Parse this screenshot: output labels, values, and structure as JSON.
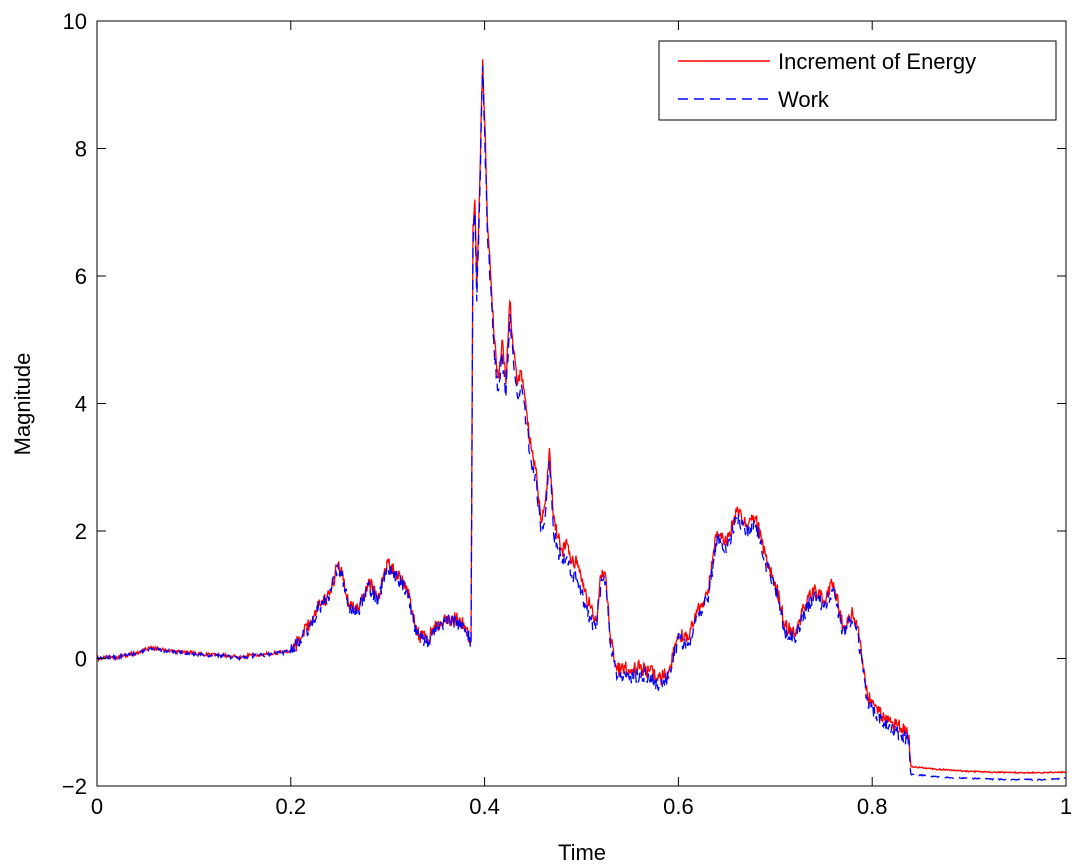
{
  "chart_data": {
    "type": "line",
    "title": "",
    "xlabel": "Time",
    "ylabel": "Magnitude",
    "xlim": [
      0,
      1
    ],
    "ylim": [
      -2,
      10
    ],
    "xticks": [
      0,
      0.2,
      0.4,
      0.6,
      0.8,
      1
    ],
    "xtick_labels": [
      "0",
      "0.2",
      "0.4",
      "0.6",
      "0.8",
      "1"
    ],
    "yticks": [
      -2,
      0,
      2,
      4,
      6,
      8,
      10
    ],
    "ytick_labels": [
      "−2",
      "0",
      "2",
      "4",
      "6",
      "8",
      "10"
    ],
    "grid": false,
    "legend_position": "top-right",
    "series": [
      {
        "name": "Increment of Energy",
        "color": "#ff0000",
        "style": "solid",
        "x": [
          0,
          0.02,
          0.04,
          0.055,
          0.07,
          0.09,
          0.11,
          0.13,
          0.145,
          0.16,
          0.18,
          0.2,
          0.21,
          0.22,
          0.23,
          0.24,
          0.248,
          0.255,
          0.26,
          0.27,
          0.28,
          0.29,
          0.3,
          0.31,
          0.32,
          0.33,
          0.34,
          0.35,
          0.36,
          0.37,
          0.38,
          0.386,
          0.388,
          0.39,
          0.392,
          0.395,
          0.398,
          0.4,
          0.403,
          0.406,
          0.41,
          0.414,
          0.418,
          0.422,
          0.426,
          0.43,
          0.434,
          0.438,
          0.443,
          0.448,
          0.453,
          0.458,
          0.463,
          0.467,
          0.471,
          0.476,
          0.48,
          0.485,
          0.49,
          0.495,
          0.5,
          0.505,
          0.51,
          0.515,
          0.52,
          0.525,
          0.53,
          0.535,
          0.54,
          0.545,
          0.55,
          0.56,
          0.57,
          0.58,
          0.59,
          0.6,
          0.61,
          0.62,
          0.63,
          0.64,
          0.65,
          0.66,
          0.67,
          0.68,
          0.69,
          0.7,
          0.71,
          0.72,
          0.73,
          0.74,
          0.75,
          0.76,
          0.77,
          0.78,
          0.785,
          0.79,
          0.795,
          0.8,
          0.81,
          0.82,
          0.83,
          0.838,
          0.84,
          0.85,
          0.86,
          0.88,
          0.9,
          0.92,
          0.94,
          0.96,
          0.98,
          1.0
        ],
        "y": [
          0.0,
          0.02,
          0.08,
          0.17,
          0.13,
          0.1,
          0.06,
          0.05,
          0.02,
          0.05,
          0.08,
          0.12,
          0.3,
          0.55,
          0.85,
          1.0,
          1.45,
          1.25,
          0.85,
          0.8,
          1.2,
          0.95,
          1.5,
          1.3,
          1.1,
          0.4,
          0.28,
          0.5,
          0.65,
          0.62,
          0.5,
          0.3,
          6.8,
          7.2,
          5.8,
          7.5,
          9.4,
          8.5,
          6.8,
          6.1,
          5.0,
          4.4,
          5.0,
          4.3,
          5.6,
          4.8,
          4.3,
          4.5,
          3.9,
          3.3,
          3.0,
          2.2,
          2.5,
          3.3,
          2.2,
          1.9,
          1.7,
          1.8,
          1.5,
          1.5,
          1.2,
          1.0,
          0.8,
          0.6,
          1.3,
          1.3,
          0.3,
          -0.1,
          -0.2,
          -0.15,
          -0.2,
          -0.15,
          -0.2,
          -0.3,
          -0.2,
          0.4,
          0.3,
          0.8,
          1.0,
          2.0,
          1.8,
          2.3,
          2.1,
          2.2,
          1.6,
          1.2,
          0.5,
          0.4,
          0.8,
          1.1,
          0.9,
          1.2,
          0.5,
          0.7,
          0.5,
          0.0,
          -0.6,
          -0.7,
          -0.9,
          -1.0,
          -1.1,
          -1.2,
          -1.7,
          -1.71,
          -1.73,
          -1.75,
          -1.77,
          -1.78,
          -1.79,
          -1.79,
          -1.79,
          -1.78
        ]
      },
      {
        "name": "Work",
        "color": "#0000ff",
        "style": "dashed",
        "x": [
          0,
          0.02,
          0.04,
          0.055,
          0.07,
          0.09,
          0.11,
          0.13,
          0.145,
          0.16,
          0.18,
          0.2,
          0.21,
          0.22,
          0.23,
          0.24,
          0.248,
          0.255,
          0.26,
          0.27,
          0.28,
          0.29,
          0.3,
          0.31,
          0.32,
          0.33,
          0.34,
          0.35,
          0.36,
          0.37,
          0.38,
          0.386,
          0.388,
          0.39,
          0.392,
          0.395,
          0.398,
          0.4,
          0.403,
          0.406,
          0.41,
          0.414,
          0.418,
          0.422,
          0.426,
          0.43,
          0.434,
          0.438,
          0.443,
          0.448,
          0.453,
          0.458,
          0.463,
          0.467,
          0.471,
          0.476,
          0.48,
          0.485,
          0.49,
          0.495,
          0.5,
          0.505,
          0.51,
          0.515,
          0.52,
          0.525,
          0.53,
          0.535,
          0.54,
          0.545,
          0.55,
          0.56,
          0.57,
          0.58,
          0.59,
          0.6,
          0.61,
          0.62,
          0.63,
          0.64,
          0.65,
          0.66,
          0.67,
          0.68,
          0.69,
          0.7,
          0.71,
          0.72,
          0.73,
          0.74,
          0.75,
          0.76,
          0.77,
          0.78,
          0.785,
          0.79,
          0.795,
          0.8,
          0.81,
          0.82,
          0.83,
          0.838,
          0.84,
          0.85,
          0.86,
          0.88,
          0.9,
          0.92,
          0.94,
          0.96,
          0.98,
          1.0
        ],
        "y": [
          0.0,
          0.02,
          0.07,
          0.16,
          0.12,
          0.09,
          0.05,
          0.04,
          0.01,
          0.04,
          0.07,
          0.11,
          0.28,
          0.52,
          0.82,
          0.97,
          1.4,
          1.2,
          0.82,
          0.76,
          1.15,
          0.9,
          1.45,
          1.25,
          1.05,
          0.36,
          0.25,
          0.46,
          0.6,
          0.58,
          0.46,
          0.25,
          6.5,
          7.0,
          5.6,
          7.3,
          9.3,
          8.3,
          6.6,
          5.9,
          4.8,
          4.2,
          4.8,
          4.1,
          5.4,
          4.6,
          4.1,
          4.3,
          3.7,
          3.1,
          2.8,
          2.0,
          2.3,
          3.1,
          2.0,
          1.7,
          1.5,
          1.6,
          1.3,
          1.3,
          1.0,
          0.8,
          0.6,
          0.45,
          1.2,
          1.2,
          0.2,
          -0.2,
          -0.3,
          -0.25,
          -0.3,
          -0.25,
          -0.3,
          -0.45,
          -0.3,
          0.3,
          0.2,
          0.7,
          0.9,
          1.9,
          1.7,
          2.2,
          2.0,
          2.1,
          1.5,
          1.1,
          0.4,
          0.3,
          0.7,
          1.0,
          0.8,
          1.1,
          0.4,
          0.6,
          0.4,
          -0.1,
          -0.7,
          -0.8,
          -1.0,
          -1.1,
          -1.2,
          -1.3,
          -1.82,
          -1.83,
          -1.85,
          -1.87,
          -1.88,
          -1.89,
          -1.9,
          -1.9,
          -1.9,
          -1.88
        ]
      }
    ]
  }
}
